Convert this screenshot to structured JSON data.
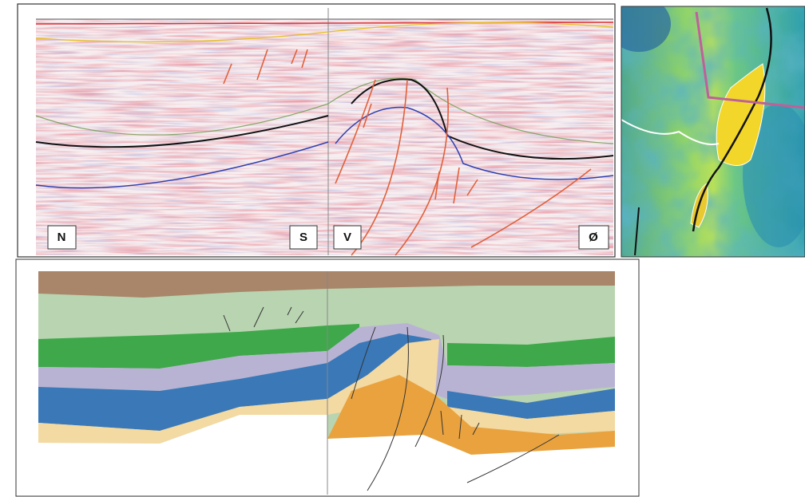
{
  "seismic_section": {
    "labels": [
      "N",
      "S",
      "V",
      "Ø"
    ]
  }
}
